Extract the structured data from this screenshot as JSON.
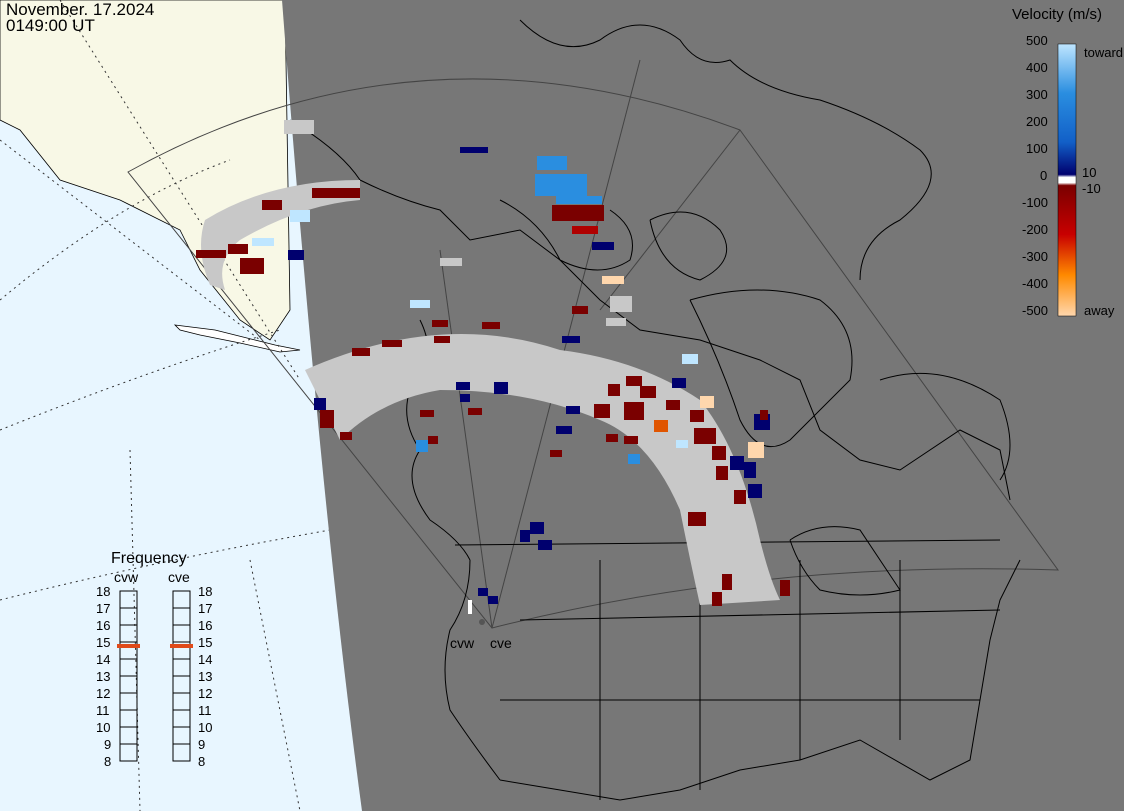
{
  "header": {
    "date": "November. 17.2024",
    "time": "0149:00 UT"
  },
  "colorbar": {
    "title": "Velocity (m/s)",
    "toward_label": "toward",
    "away_label": "away",
    "ticks_left": [
      "500",
      "400",
      "300",
      "200",
      "100",
      "0",
      "-100",
      "-200",
      "-300",
      "-400",
      "-500"
    ],
    "ticks_right_top": "10",
    "ticks_right_bottom": "-10",
    "colors": {
      "toward_light": "#bfe6ff",
      "toward_mid": "#2a8ee0",
      "toward_dark": "#00006e",
      "away_dark": "#7a0000",
      "away_mid": "#e05500",
      "away_light": "#ffd7ad",
      "ground_scatter": "#c8c8c8"
    }
  },
  "frequency": {
    "title": "Frequency",
    "radars": [
      {
        "code": "cvw",
        "selected": "15"
      },
      {
        "code": "cve",
        "selected": "15"
      }
    ],
    "levels": [
      "18",
      "17",
      "16",
      "15",
      "14",
      "13",
      "12",
      "11",
      "10",
      "9",
      "8"
    ]
  },
  "map": {
    "radar_labels": [
      "cvw",
      "cve"
    ],
    "colors": {
      "night": "#777777",
      "ocean_day": "#e8f6ff",
      "land_day": "#f8f8e6"
    }
  }
}
